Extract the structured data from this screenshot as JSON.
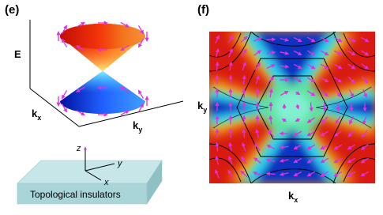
{
  "panel_e": {
    "label": "(e)",
    "axes": {
      "energy": "E",
      "kx": {
        "base": "k",
        "sub": "x"
      },
      "ky": {
        "base": "k",
        "sub": "y"
      }
    },
    "schematic": {
      "z": "z",
      "y": "y",
      "x": "x",
      "caption": "Topological insulators"
    }
  },
  "panel_f": {
    "label": "(f)",
    "ky": {
      "base": "k",
      "sub": "y"
    },
    "kx": {
      "base": "k",
      "sub": "x"
    }
  }
}
